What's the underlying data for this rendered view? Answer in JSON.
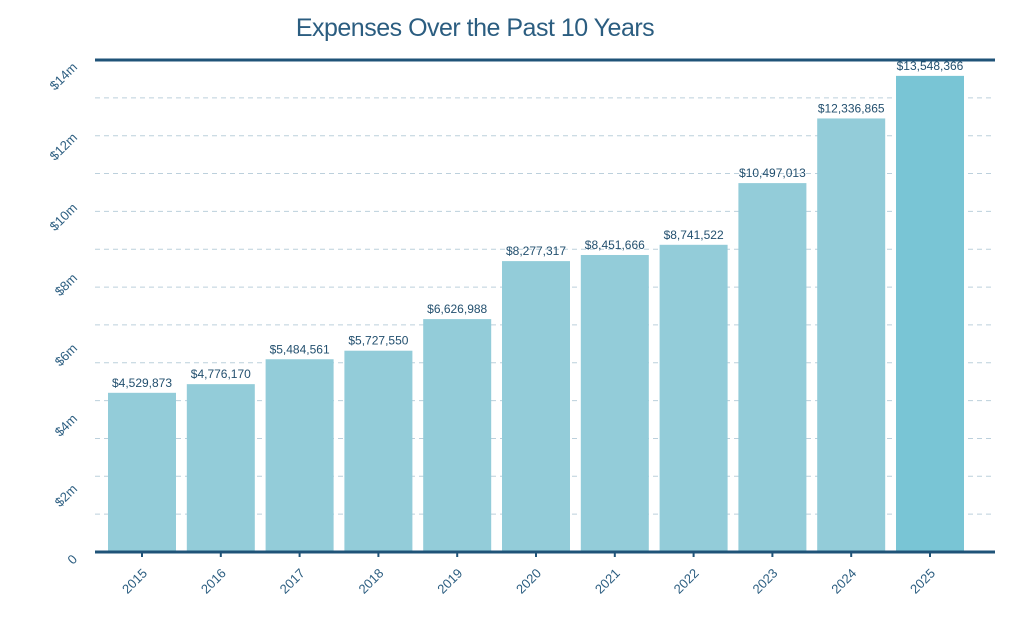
{
  "chart_data": {
    "type": "bar",
    "title": "Expenses Over the Past 10 Years",
    "xlabel": "",
    "ylabel": "",
    "categories": [
      "2015",
      "2016",
      "2017",
      "2018",
      "2019",
      "2020",
      "2021",
      "2022",
      "2023",
      "2024",
      "2025"
    ],
    "values": [
      4529873,
      4776170,
      5484561,
      5727550,
      6626988,
      8277317,
      8451666,
      8741522,
      10497013,
      12336865,
      13548366
    ],
    "data_labels": [
      "$4,529,873",
      "$4,776,170",
      "$5,484,561",
      "$5,727,550",
      "$6,626,988",
      "$8,277,317",
      "$8,451,666",
      "$8,741,522",
      "$10,497,013",
      "$12,336,865",
      "$13,548,366"
    ],
    "ylim": [
      0,
      14000000
    ],
    "y_ticks": [
      0,
      2000000,
      4000000,
      6000000,
      8000000,
      10000000,
      12000000,
      14000000
    ],
    "y_tick_labels": [
      "0",
      "$2m",
      "$4m",
      "$6m",
      "$8m",
      "$10m",
      "$12m",
      "$14m"
    ],
    "grid": true,
    "highlight_category": "2025",
    "colors": {
      "bar": "#93ccd9",
      "highlight_bar": "#79c5d5",
      "axis": "#1f5378",
      "text": "#2b5d80",
      "highlight_tick": "#7cc5d6",
      "grid": "#bcd0dc"
    }
  }
}
